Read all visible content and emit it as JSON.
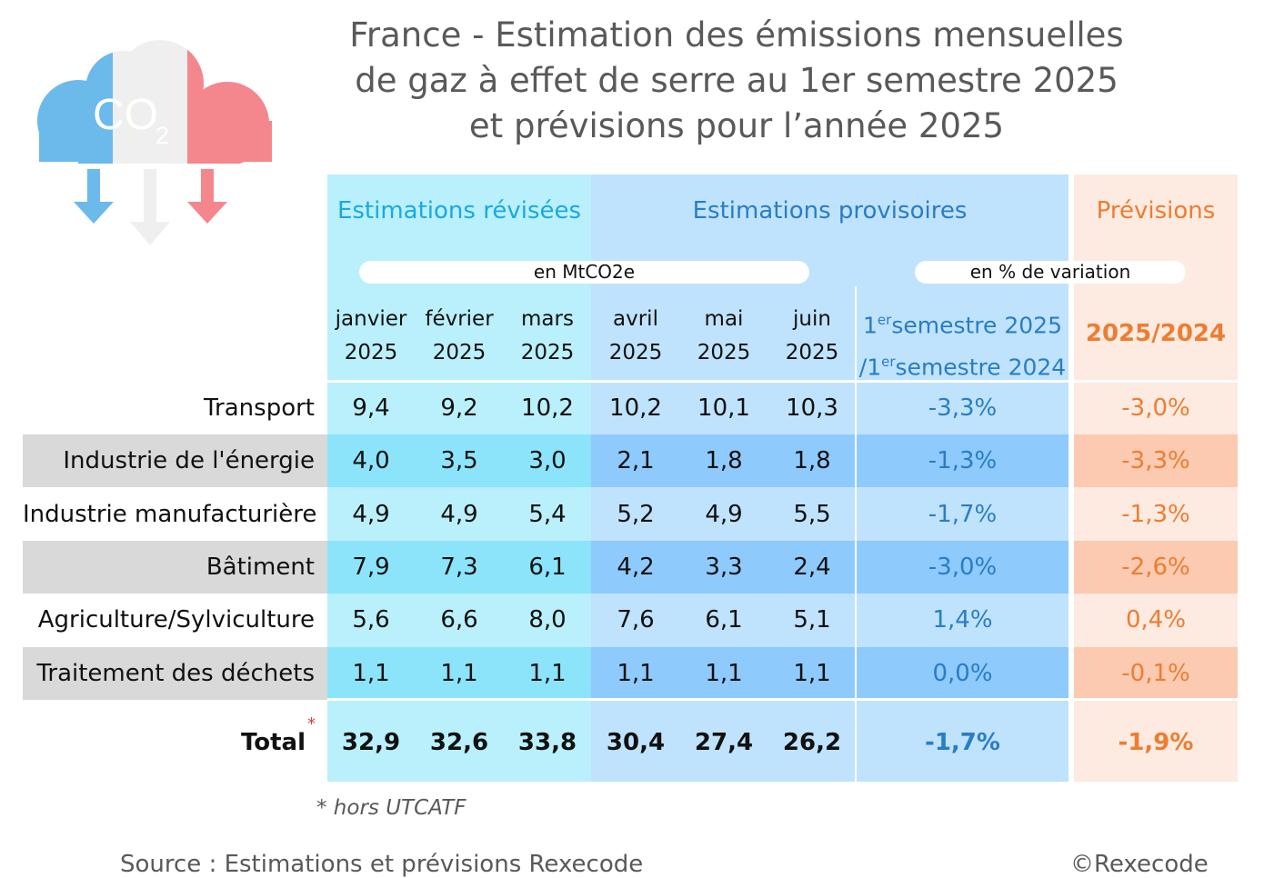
{
  "title_lines": [
    "France - Estimation des émissions mensuelles",
    "de gaz à effet de serre au 1er semestre 2025",
    "et prévisions pour l’année 2025"
  ],
  "logo": {
    "text": "CO",
    "subscript": "2",
    "icon": "co2-cloud-icon",
    "colors": [
      "#6cb9ec",
      "#efefef",
      "#f4878d"
    ]
  },
  "headers": {
    "revisees": "Estimations révisées",
    "provisoires": "Estimations provisoires",
    "previsions": "Prévisions",
    "unit_mt": "en MtCO2e",
    "unit_pct": "en % de variation",
    "months": [
      {
        "m": "janvier",
        "y": "2025"
      },
      {
        "m": "février",
        "y": "2025"
      },
      {
        "m": "mars",
        "y": "2025"
      },
      {
        "m": "avril",
        "y": "2025"
      },
      {
        "m": "mai",
        "y": "2025"
      },
      {
        "m": "juin",
        "y": "2025"
      }
    ],
    "semestre": {
      "n1": "1",
      "sup1": "er",
      "t1": "semestre 2025",
      "n2": "/1",
      "sup2": "er",
      "t2": "semestre 2024"
    },
    "prev_col": "2025/2024"
  },
  "total_label": "Total",
  "total_mark": "*",
  "footnote": "*  hors UTCATF",
  "source": "Source : Estimations et prévisions Rexecode",
  "copyright": "©Rexecode",
  "colors": {
    "revisees": "#1ba9e0",
    "provisoires": "#2a7dc4",
    "previsions": "#ed7d31",
    "asterisk": "#e03a3a"
  },
  "chart_data": {
    "type": "table",
    "title": "France - Estimation des émissions mensuelles de gaz à effet de serre au 1er semestre 2025 et prévisions pour l’année 2025",
    "columns": [
      "janvier 2025",
      "février 2025",
      "mars 2025",
      "avril 2025",
      "mai 2025",
      "juin 2025",
      "1er semestre 2025 /1er semestre 2024",
      "2025/2024"
    ],
    "rows": [
      {
        "label": "Transport",
        "values": [
          "9,4",
          "9,2",
          "10,2",
          "10,2",
          "10,1",
          "10,3"
        ],
        "pct": "-3,3%",
        "prev": "-3,0%"
      },
      {
        "label": "Industrie de l'énergie",
        "values": [
          "4,0",
          "3,5",
          "3,0",
          "2,1",
          "1,8",
          "1,8"
        ],
        "pct": "-1,3%",
        "prev": "-3,3%"
      },
      {
        "label": "Industrie manufacturière",
        "values": [
          "4,9",
          "4,9",
          "5,4",
          "5,2",
          "4,9",
          "5,5"
        ],
        "pct": "-1,7%",
        "prev": "-1,3%"
      },
      {
        "label": "Bâtiment",
        "values": [
          "7,9",
          "7,3",
          "6,1",
          "4,2",
          "3,3",
          "2,4"
        ],
        "pct": "-3,0%",
        "prev": "-2,6%"
      },
      {
        "label": "Agriculture/Sylviculture",
        "values": [
          "5,6",
          "6,6",
          "8,0",
          "7,6",
          "6,1",
          "5,1"
        ],
        "pct": "1,4%",
        "prev": "0,4%"
      },
      {
        "label": "Traitement des déchets",
        "values": [
          "1,1",
          "1,1",
          "1,1",
          "1,1",
          "1,1",
          "1,1"
        ],
        "pct": "0,0%",
        "prev": "-0,1%"
      }
    ],
    "total": {
      "label": "Total",
      "values": [
        "32,9",
        "32,6",
        "33,8",
        "30,4",
        "27,4",
        "26,2"
      ],
      "pct": "-1,7%",
      "prev": "-1,9%"
    }
  }
}
